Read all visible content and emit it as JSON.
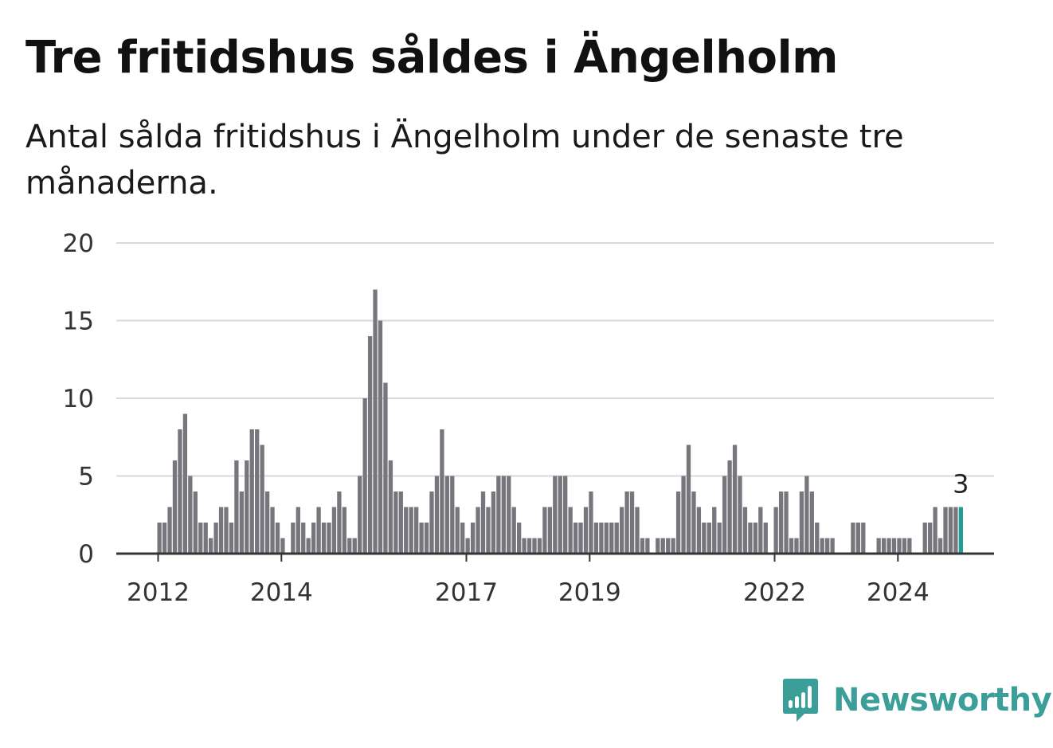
{
  "title": "Tre fritidshus såldes i Ängelholm",
  "subtitle": "Antal sålda fritidshus i Ängelholm under de senaste tre månaderna.",
  "brand": {
    "name": "Newsworthy",
    "color": "#3b9e98",
    "icon": "newsworthy-logo-icon"
  },
  "colors": {
    "bar": "#77767c",
    "highlight": "#259b95",
    "grid": "#d9d9d9",
    "axis": "#333333"
  },
  "chart_data": {
    "type": "bar",
    "title": "Tre fritidshus såldes i Ängelholm",
    "ylim": [
      0,
      20
    ],
    "yticks": [
      0,
      5,
      10,
      15,
      20
    ],
    "grid": true,
    "x_ticks": [
      {
        "label": "2012",
        "index": 0
      },
      {
        "label": "2014",
        "index": 24
      },
      {
        "label": "2017",
        "index": 60
      },
      {
        "label": "2019",
        "index": 84
      },
      {
        "label": "2022",
        "index": 120
      },
      {
        "label": "2024",
        "index": 144
      }
    ],
    "start": "2012-01",
    "values": [
      2,
      2,
      3,
      6,
      8,
      9,
      5,
      4,
      2,
      2,
      1,
      2,
      3,
      3,
      2,
      6,
      4,
      6,
      8,
      8,
      7,
      4,
      3,
      2,
      1,
      0,
      2,
      3,
      2,
      1,
      2,
      3,
      2,
      2,
      3,
      4,
      3,
      1,
      1,
      5,
      10,
      14,
      17,
      15,
      11,
      6,
      4,
      4,
      3,
      3,
      3,
      2,
      2,
      4,
      5,
      8,
      5,
      5,
      3,
      2,
      1,
      2,
      3,
      4,
      3,
      4,
      5,
      5,
      5,
      3,
      2,
      1,
      1,
      1,
      1,
      3,
      3,
      5,
      5,
      5,
      3,
      2,
      2,
      3,
      4,
      2,
      2,
      2,
      2,
      2,
      3,
      4,
      4,
      3,
      1,
      1,
      0,
      1,
      1,
      1,
      1,
      4,
      5,
      7,
      4,
      3,
      2,
      2,
      3,
      2,
      5,
      6,
      7,
      5,
      3,
      2,
      2,
      3,
      2,
      0,
      3,
      4,
      4,
      1,
      1,
      4,
      5,
      4,
      2,
      1,
      1,
      1,
      0,
      0,
      0,
      2,
      2,
      2,
      0,
      0,
      1,
      1,
      1,
      1,
      1,
      1,
      1,
      0,
      0,
      2,
      2,
      3,
      1,
      3,
      3,
      3,
      3
    ],
    "highlight_last": true,
    "last_label": "3"
  }
}
